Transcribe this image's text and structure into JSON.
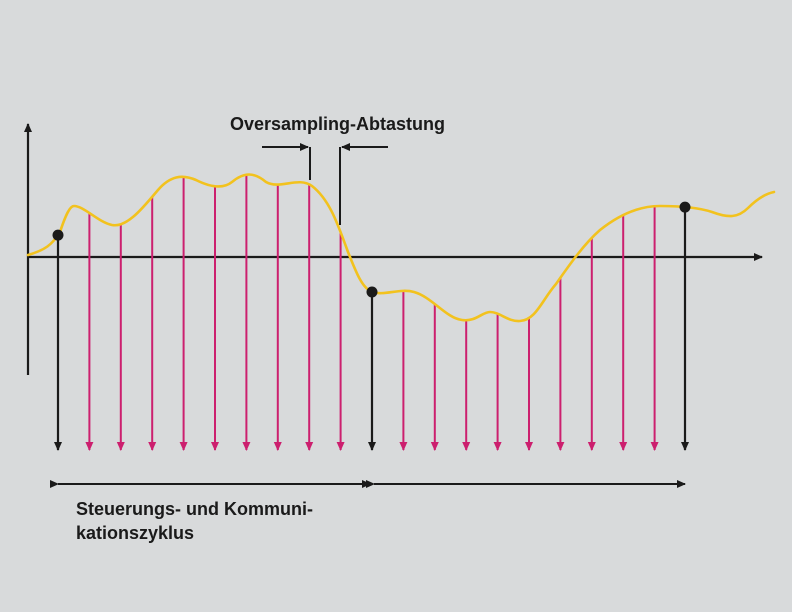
{
  "labels": {
    "oversampling": "Oversampling-Abtastung",
    "cycle_line1": "Steuerungs- und Kommuni-",
    "cycle_line2": "kationszyklus"
  },
  "colors": {
    "background": "#d8dadb",
    "signal": "#f2c21e",
    "oversample_arrow": "#cc1f6e",
    "cycle_arrow": "#1a1a1a",
    "axis": "#1a1a1a"
  },
  "samples": {
    "cycle_sample_count": 3,
    "oversample_per_cycle": 9
  }
}
